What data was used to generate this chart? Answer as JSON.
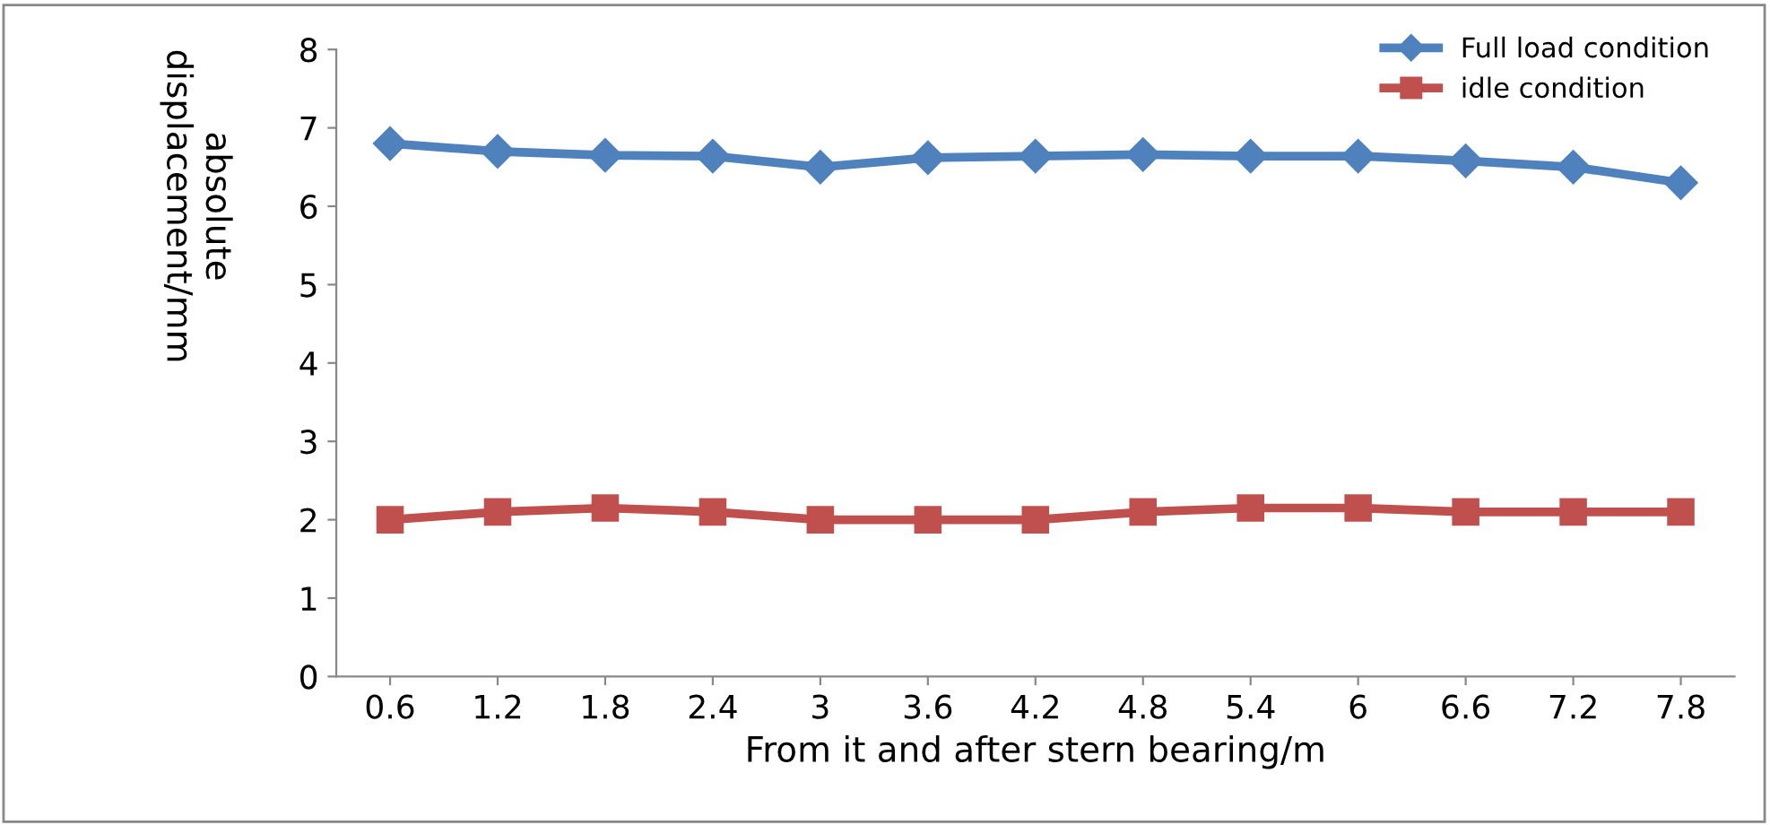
{
  "chart_data": {
    "type": "line",
    "categories": [
      "0.6",
      "1.2",
      "1.8",
      "2.4",
      "3",
      "3.6",
      "4.2",
      "4.8",
      "5.4",
      "6",
      "6.6",
      "7.2",
      "7.8"
    ],
    "series": [
      {
        "name": "Full load condition",
        "color": "#4f81bd",
        "marker": "diamond",
        "values": [
          6.8,
          6.7,
          6.65,
          6.64,
          6.5,
          6.62,
          6.64,
          6.66,
          6.64,
          6.64,
          6.58,
          6.5,
          6.3
        ]
      },
      {
        "name": "idle condition",
        "color": "#c0504d",
        "marker": "square",
        "values": [
          2.0,
          2.1,
          2.15,
          2.1,
          2.0,
          2.0,
          2.0,
          2.1,
          2.15,
          2.15,
          2.1,
          2.1,
          2.1
        ]
      }
    ],
    "xlabel": "From it and after stern bearing/m",
    "ylabel": "absolute\ndisplacement/mm",
    "ylim": [
      0,
      8
    ],
    "yticks": [
      0,
      1,
      2,
      3,
      4,
      5,
      6,
      7,
      8
    ],
    "grid": false,
    "legend": "top right",
    "line_style": "solid"
  }
}
